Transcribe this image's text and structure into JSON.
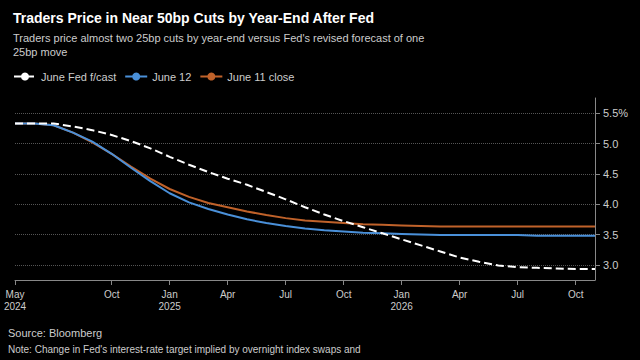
{
  "chart_data": {
    "type": "line",
    "title": "Traders Price in Near 50bp Cuts by Year-End After Fed",
    "subtitle": "Traders price almost two 25bp cuts by year-end versus Fed's revised forecast of one\n25bp move",
    "annotations": [
      "Source: Bloomberg",
      "Note: Change in Fed's interest-rate target implied by overnight index swaps and"
    ],
    "categories": [
      "May\n2024",
      null,
      null,
      null,
      null,
      "Oct",
      null,
      null,
      "Jan\n2025",
      null,
      null,
      "Apr",
      null,
      null,
      "Jul",
      null,
      null,
      "Oct",
      null,
      null,
      "Jan\n2026",
      null,
      null,
      "Apr",
      null,
      null,
      "Jul",
      null,
      null,
      "Oct",
      null
    ],
    "series": [
      {
        "name": "June Fed f/cast",
        "color": "#ffffff",
        "line_style": "dashed",
        "values": [
          5.33,
          5.33,
          5.33,
          5.28,
          5.22,
          5.14,
          5.04,
          4.92,
          4.78,
          4.65,
          4.53,
          4.42,
          4.32,
          4.2,
          4.08,
          3.95,
          3.83,
          3.72,
          3.62,
          3.52,
          3.42,
          3.32,
          3.22,
          3.12,
          3.05,
          2.99,
          2.96,
          2.95,
          2.94,
          2.93,
          2.93
        ]
      },
      {
        "name": "June 12",
        "color": "#4a90d9",
        "line_style": "solid",
        "values": [
          5.33,
          5.33,
          5.3,
          5.18,
          5.03,
          4.83,
          4.6,
          4.38,
          4.18,
          4.03,
          3.92,
          3.83,
          3.75,
          3.69,
          3.64,
          3.6,
          3.57,
          3.55,
          3.53,
          3.52,
          3.51,
          3.5,
          3.49,
          3.49,
          3.49,
          3.49,
          3.49,
          3.48,
          3.48,
          3.48,
          3.48
        ]
      },
      {
        "name": "June 11 close",
        "color": "#c0622a",
        "line_style": "solid",
        "values": [
          5.33,
          5.33,
          5.3,
          5.18,
          5.02,
          4.83,
          4.62,
          4.42,
          4.25,
          4.12,
          4.02,
          3.95,
          3.88,
          3.82,
          3.77,
          3.73,
          3.71,
          3.69,
          3.67,
          3.66,
          3.65,
          3.64,
          3.63,
          3.63,
          3.63,
          3.63,
          3.63,
          3.63,
          3.63,
          3.63,
          3.63
        ]
      }
    ],
    "ylim": [
      2.75,
      5.75
    ],
    "yticks": [
      {
        "value": 3.0,
        "label": "3.0"
      },
      {
        "value": 3.5,
        "label": "3.5"
      },
      {
        "value": 4.0,
        "label": "4.0"
      },
      {
        "value": 4.5,
        "label": "4.5"
      },
      {
        "value": 5.0,
        "label": "5.0"
      },
      {
        "value": 5.5,
        "label": "5.5%"
      }
    ],
    "grid": true,
    "legend": "top"
  }
}
